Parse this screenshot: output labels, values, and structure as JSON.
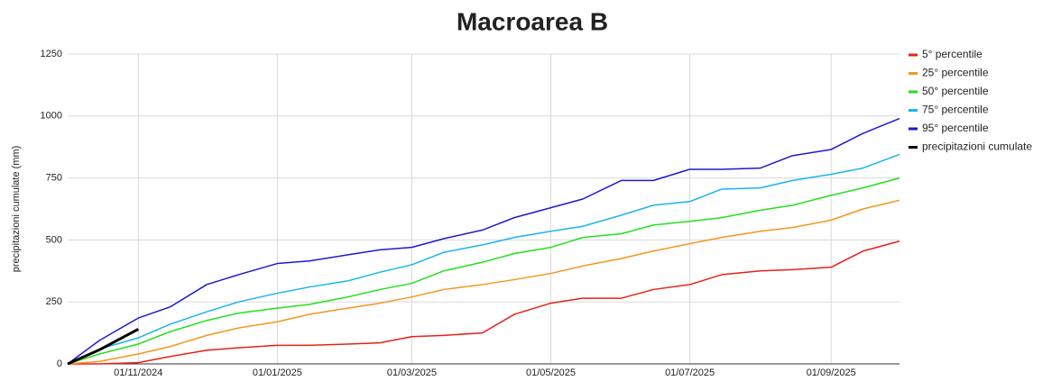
{
  "chart_data": {
    "type": "line",
    "title": "Macroarea B",
    "y_label": "precipitazioni cumulate (mm)",
    "x": [
      "01/10/2024",
      "15/10/2024",
      "01/11/2024",
      "15/11/2024",
      "01/12/2024",
      "15/12/2024",
      "01/01/2025",
      "15/01/2025",
      "01/02/2025",
      "15/02/2025",
      "01/03/2025",
      "15/03/2025",
      "01/04/2025",
      "15/04/2025",
      "01/05/2025",
      "15/05/2025",
      "01/06/2025",
      "15/06/2025",
      "01/07/2025",
      "15/07/2025",
      "01/08/2025",
      "15/08/2025",
      "01/09/2025",
      "15/09/2025",
      "01/10/2025"
    ],
    "series": [
      {
        "name": "5° percentile",
        "color": "#e8201a",
        "values": [
          0,
          0,
          5,
          30,
          55,
          65,
          75,
          75,
          80,
          85,
          110,
          115,
          125,
          200,
          245,
          265,
          265,
          300,
          320,
          360,
          375,
          380,
          390,
          455,
          495
        ]
      },
      {
        "name": "25° percentile",
        "color": "#f5961e",
        "values": [
          0,
          10,
          40,
          70,
          115,
          145,
          170,
          200,
          225,
          245,
          270,
          300,
          320,
          340,
          365,
          395,
          425,
          455,
          485,
          510,
          535,
          550,
          580,
          625,
          660
        ]
      },
      {
        "name": "50° percentile",
        "color": "#22e01e",
        "values": [
          0,
          40,
          80,
          130,
          175,
          205,
          225,
          240,
          270,
          300,
          325,
          375,
          410,
          445,
          470,
          510,
          525,
          560,
          575,
          590,
          620,
          640,
          680,
          710,
          750
        ]
      },
      {
        "name": "75° percentile",
        "color": "#1ab4ee",
        "values": [
          0,
          60,
          105,
          160,
          210,
          250,
          285,
          310,
          335,
          370,
          400,
          450,
          480,
          510,
          535,
          555,
          600,
          640,
          655,
          705,
          710,
          740,
          765,
          790,
          845
        ]
      },
      {
        "name": "95° percentile",
        "color": "#1a1ad4",
        "values": [
          0,
          95,
          185,
          230,
          320,
          360,
          405,
          415,
          440,
          460,
          470,
          505,
          540,
          590,
          630,
          665,
          740,
          740,
          785,
          785,
          790,
          840,
          865,
          930,
          990
        ]
      },
      {
        "name": "precipitazioni cumulate",
        "color": "#000000",
        "values": [
          0,
          57,
          140,
          null,
          null,
          null,
          null,
          null,
          null,
          null,
          null,
          null,
          null,
          null,
          null,
          null,
          null,
          null,
          null,
          null,
          null,
          null,
          null,
          null,
          null
        ]
      }
    ],
    "xlim": [
      "01/10/2024",
      "01/10/2025"
    ],
    "xticks": [
      "01/11/2024",
      "01/01/2025",
      "01/03/2025",
      "01/05/2025",
      "01/07/2025",
      "01/09/2025"
    ],
    "ylim": [
      0,
      1250
    ],
    "yticks": [
      0,
      250,
      500,
      750,
      1000,
      1250
    ],
    "grid": true
  }
}
